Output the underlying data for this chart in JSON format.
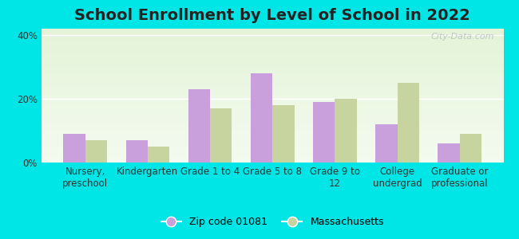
{
  "title": "School Enrollment by Level of School in 2022",
  "categories": [
    "Nursery,\npreschool",
    "Kindergarten",
    "Grade 1 to 4",
    "Grade 5 to 8",
    "Grade 9 to\n12",
    "College\nundergrad",
    "Graduate or\nprofessional"
  ],
  "zip_values": [
    9,
    7,
    23,
    28,
    19,
    12,
    6
  ],
  "ma_values": [
    7,
    5,
    17,
    18,
    20,
    25,
    9
  ],
  "zip_color": "#c9a0dc",
  "ma_color": "#c8d49f",
  "zip_label": "Zip code 01081",
  "ma_label": "Massachusetts",
  "yticks": [
    0,
    20,
    40
  ],
  "ytick_labels": [
    "0%",
    "20%",
    "40%"
  ],
  "ylim": [
    0,
    42
  ],
  "bg_outer": "#00e5e5",
  "bg_plot": "#f0f8e8",
  "watermark": "City-Data.com",
  "title_fontsize": 14,
  "tick_fontsize": 8.5,
  "legend_fontsize": 9
}
